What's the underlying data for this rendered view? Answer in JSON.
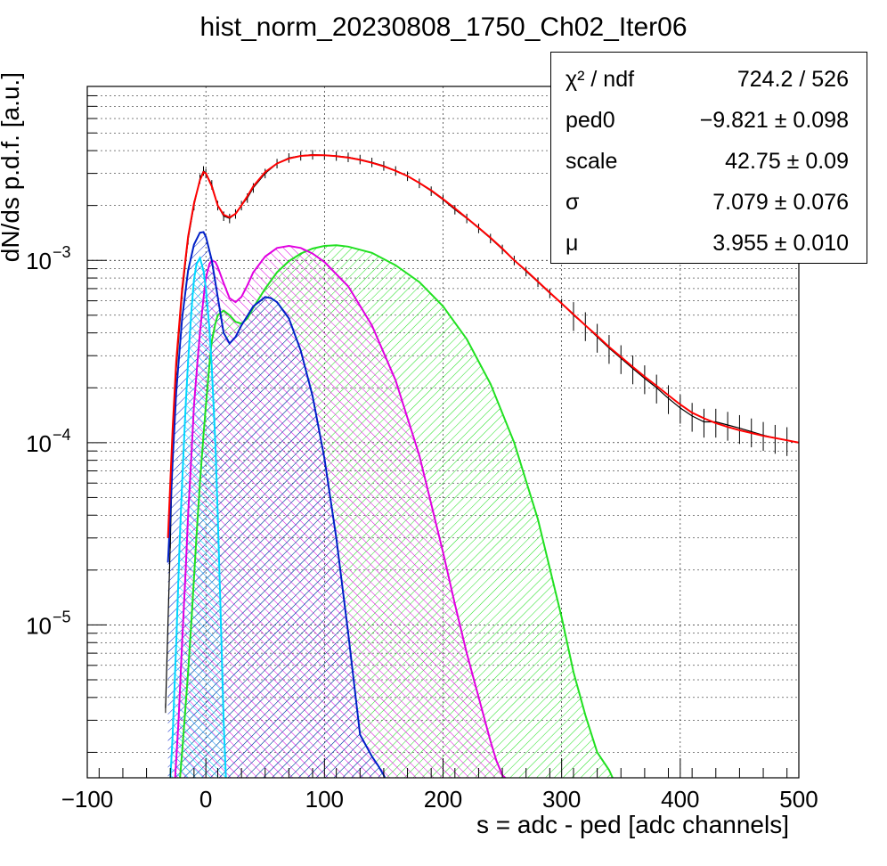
{
  "title": "hist_norm_20230808_1750_Ch02_Iter06",
  "stats": {
    "rows": [
      {
        "name": "χ² / ndf",
        "value": "724.2 / 526"
      },
      {
        "name": "ped0",
        "value": "−9.821 ± 0.098"
      },
      {
        "name": "scale",
        "value": "42.75 ± 0.09"
      },
      {
        "name": "σ",
        "value": "7.079 ± 0.076"
      },
      {
        "name": "μ",
        "value": "3.955 ± 0.010"
      }
    ]
  },
  "colors": {
    "data": "#000000",
    "total_fit": "#ff0000",
    "k1": "#00d8ff",
    "k2": "#0020c8",
    "k3": "#e000e0",
    "k4": "#20e020"
  },
  "chart_data": {
    "type": "line",
    "title": "hist_norm_20230808_1750_Ch02_Iter06",
    "xlabel": "s = adc - ped [adc channels]",
    "ylabel": "dN/ds p.d.f. [a.u.]",
    "xlim": [
      -100,
      500
    ],
    "ylim": [
      1.45e-06,
      0.009
    ],
    "yscale": "log",
    "grid": true,
    "x_ticks": [
      "−100",
      "0",
      "100",
      "200",
      "300",
      "400",
      "500"
    ],
    "y_ticks": [
      {
        "base": "10",
        "exp": "−5",
        "value": 1e-05
      },
      {
        "base": "10",
        "exp": "−4",
        "value": 0.0001
      },
      {
        "base": "10",
        "exp": "−3",
        "value": 0.001
      }
    ],
    "series": [
      {
        "key": "data",
        "x": [
          -34,
          -30,
          -28,
          -25,
          -20,
          -15,
          -10,
          -5,
          -2,
          0,
          5,
          10,
          15,
          20,
          25,
          30,
          35,
          40,
          50,
          60,
          70,
          80,
          90,
          100,
          110,
          120,
          130,
          140,
          150,
          160,
          170,
          180,
          190,
          200,
          210,
          220,
          230,
          240,
          250,
          260,
          270,
          280,
          290,
          300,
          310,
          320,
          330,
          340,
          350,
          360,
          370,
          380,
          390,
          400,
          410,
          420,
          430,
          440,
          450,
          460,
          470,
          480,
          490,
          500
        ],
        "y": [
          3.5e-06,
          2.8e-05,
          9e-05,
          0.00025,
          0.00065,
          0.0013,
          0.002,
          0.0028,
          0.0031,
          0.003,
          0.0026,
          0.002,
          0.00175,
          0.0017,
          0.0018,
          0.002,
          0.0022,
          0.0025,
          0.003,
          0.0034,
          0.00365,
          0.00375,
          0.0038,
          0.00378,
          0.00374,
          0.00368,
          0.00358,
          0.00345,
          0.0033,
          0.0031,
          0.0029,
          0.00265,
          0.0024,
          0.00215,
          0.0019,
          0.0017,
          0.0015,
          0.00132,
          0.00115,
          0.001,
          0.00087,
          0.00076,
          0.00066,
          0.00058,
          0.0005,
          0.00044,
          0.00038,
          0.00033,
          0.00029,
          0.000255,
          0.000225,
          0.0002,
          0.000175,
          0.000155,
          0.00014,
          0.00013,
          0.00013,
          0.000125,
          0.00012,
          0.000115,
          0.00011,
          0.000106,
          0.000103,
          0.0001
        ]
      },
      {
        "key": "total_fit",
        "x": [
          -32,
          -30,
          -28,
          -25,
          -20,
          -15,
          -10,
          -5,
          -2,
          0,
          5,
          10,
          15,
          20,
          25,
          30,
          35,
          40,
          50,
          60,
          70,
          80,
          90,
          100,
          110,
          120,
          130,
          140,
          150,
          160,
          170,
          180,
          190,
          200,
          210,
          220,
          230,
          240,
          250,
          260,
          270,
          280,
          290,
          300,
          310,
          320,
          330,
          340,
          350,
          360,
          370,
          380,
          390,
          400,
          410,
          420,
          430,
          440,
          450,
          460,
          470,
          480,
          490,
          500
        ],
        "y": [
          3e-05,
          6e-05,
          0.00012,
          0.00028,
          0.0007,
          0.00135,
          0.00205,
          0.00275,
          0.00305,
          0.003,
          0.00255,
          0.002,
          0.00178,
          0.00172,
          0.0018,
          0.002,
          0.00225,
          0.00255,
          0.00305,
          0.0034,
          0.00362,
          0.00374,
          0.00378,
          0.00377,
          0.00373,
          0.00366,
          0.00356,
          0.00343,
          0.00328,
          0.0031,
          0.0029,
          0.00266,
          0.00242,
          0.00217,
          0.00193,
          0.00171,
          0.00151,
          0.00133,
          0.00116,
          0.001,
          0.00088,
          0.000765,
          0.000665,
          0.00058,
          0.000505,
          0.00044,
          0.000385,
          0.000335,
          0.000295,
          0.00026,
          0.00023,
          0.000205,
          0.000182,
          0.000162,
          0.000146,
          0.000136,
          0.000128,
          0.000122,
          0.000117,
          0.000113,
          0.000109,
          0.000106,
          0.000103,
          0.0001
        ]
      },
      {
        "key": "k1",
        "x": [
          -30,
          -28,
          -25,
          -22,
          -20,
          -17,
          -15,
          -12,
          -10,
          -8,
          -5,
          -2,
          0,
          3,
          5,
          8,
          10,
          12,
          15,
          17
        ],
        "y": [
          1.4e-06,
          2.5e-06,
          8e-06,
          3e-05,
          6e-05,
          0.00016,
          0.00028,
          0.00055,
          0.00078,
          0.00095,
          0.00103,
          0.00088,
          0.0007,
          0.00042,
          0.00026,
          0.0001,
          4e-05,
          1.5e-05,
          3e-06,
          1.4e-06
        ]
      },
      {
        "key": "k2",
        "x": [
          -32,
          -30,
          -28,
          -25,
          -20,
          -15,
          -10,
          -5,
          -2,
          0,
          5,
          10,
          15,
          20,
          25,
          30,
          40,
          50,
          55,
          60,
          70,
          80,
          90,
          100,
          110,
          120,
          130,
          140,
          145,
          150,
          152
        ],
        "y": [
          2.2e-05,
          4e-05,
          8e-05,
          0.00019,
          0.00048,
          0.00088,
          0.00122,
          0.00142,
          0.00143,
          0.00135,
          0.001,
          0.00063,
          0.0004,
          0.00035,
          0.00038,
          0.00044,
          0.00056,
          0.00063,
          0.00062,
          0.00059,
          0.00048,
          0.00032,
          0.00018,
          8.2e-05,
          3e-05,
          9e-06,
          2.5e-06,
          1.9e-06,
          1.7e-06,
          1.5e-06,
          1.4e-06
        ]
      },
      {
        "key": "k3",
        "x": [
          -26,
          -23,
          -20,
          -17,
          -15,
          -12,
          -10,
          -7,
          -5,
          -2,
          0,
          3,
          5,
          8,
          10,
          15,
          20,
          25,
          30,
          35,
          40,
          50,
          60,
          70,
          80,
          90,
          100,
          120,
          140,
          160,
          180,
          200,
          210,
          220,
          230,
          240,
          245,
          250,
          255
        ],
        "y": [
          1.4e-06,
          3e-06,
          8e-06,
          2e-05,
          4e-05,
          9e-05,
          0.00016,
          0.00028,
          0.0004,
          0.00062,
          0.0008,
          0.00096,
          0.001,
          0.00098,
          0.00092,
          0.00075,
          0.00062,
          0.00059,
          0.00063,
          0.00073,
          0.00086,
          0.00105,
          0.00117,
          0.0012,
          0.00117,
          0.00109,
          0.00098,
          0.00072,
          0.00044,
          0.00022,
          8.5e-05,
          2.5e-05,
          1.3e-05,
          7e-06,
          4e-06,
          2.3e-06,
          1.8e-06,
          1.5e-06,
          1.4e-06
        ]
      },
      {
        "key": "k4",
        "x": [
          -22,
          -20,
          -18,
          -15,
          -12,
          -10,
          -8,
          -5,
          -2,
          0,
          3,
          5,
          8,
          10,
          15,
          20,
          25,
          30,
          35,
          40,
          50,
          60,
          70,
          80,
          90,
          100,
          110,
          120,
          140,
          160,
          180,
          200,
          220,
          240,
          260,
          280,
          300,
          310,
          320,
          330,
          340,
          344
        ],
        "y": [
          1.4e-06,
          2e-06,
          3e-06,
          5.5e-06,
          1.1e-05,
          1.8e-05,
          3e-05,
          6e-05,
          0.00011,
          0.00016,
          0.00027,
          0.00036,
          0.00045,
          0.0005,
          0.00053,
          0.0005,
          0.00046,
          0.00045,
          0.00048,
          0.00055,
          0.0007,
          0.00086,
          0.00099,
          0.00109,
          0.00116,
          0.0012,
          0.00121,
          0.00119,
          0.0011,
          0.00094,
          0.00076,
          0.00056,
          0.00037,
          0.00021,
          0.0001,
          3.8e-05,
          1.1e-05,
          5.5e-06,
          3.2e-06,
          2e-06,
          1.6e-06,
          1.4e-06
        ]
      }
    ]
  }
}
